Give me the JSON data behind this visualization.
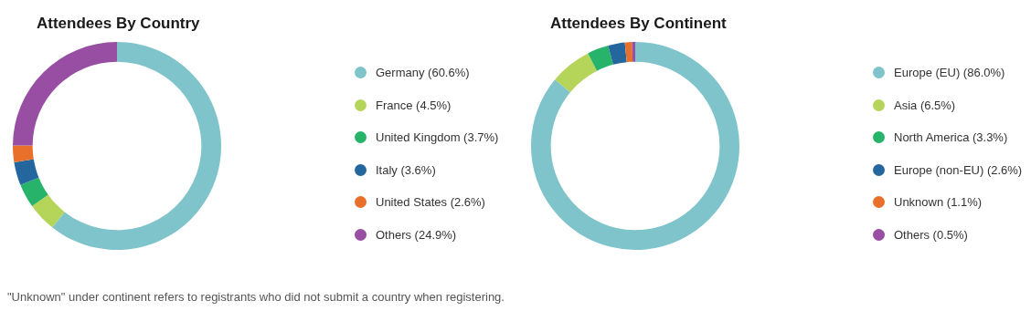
{
  "chart_data": [
    {
      "type": "donut",
      "title": "Attendees By Country",
      "categories": [
        "Germany (60.6%)",
        "France (4.5%)",
        "United Kingdom (3.7%)",
        "Italy (3.6%)",
        "United States (2.6%)",
        "Others (24.9%)"
      ],
      "values": [
        60.6,
        4.5,
        3.7,
        3.6,
        2.6,
        24.9
      ],
      "colors": [
        "#7fc3cb",
        "#b5d55a",
        "#27b36a",
        "#23679e",
        "#e8702a",
        "#984ea3"
      ],
      "legend": "right"
    },
    {
      "type": "donut",
      "title": "Attendees By Continent",
      "categories": [
        "Europe (EU) (86.0%)",
        "Asia (6.5%)",
        "North America (3.3%)",
        "Europe (non-EU) (2.6%)",
        "Unknown (1.1%)",
        "Others (0.5%)"
      ],
      "values": [
        86.0,
        6.5,
        3.3,
        2.6,
        1.1,
        0.5
      ],
      "colors": [
        "#7fc3cb",
        "#b5d55a",
        "#27b36a",
        "#23679e",
        "#e8702a",
        "#984ea3"
      ],
      "legend": "right",
      "annotations": [
        "\"Unknown\" under continent refers to registrants who did not submit a country when registering."
      ]
    }
  ]
}
